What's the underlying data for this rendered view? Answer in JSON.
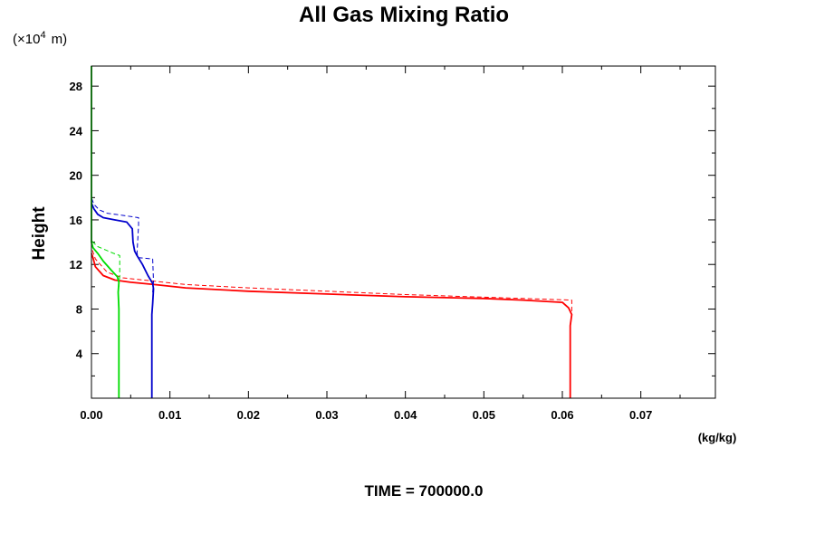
{
  "chart_data": {
    "type": "line",
    "title": "All Gas Mixing Ratio",
    "ylabel": "Height",
    "y_scale_label": "(×10",
    "y_scale_exp": "4",
    "y_scale_unit": "m)",
    "x_unit": "(kg/kg)",
    "footer": "TIME = 700000.0",
    "xlim": [
      0.0,
      0.0795
    ],
    "ylim": [
      0,
      29.8
    ],
    "x_ticks": [
      {
        "value": 0.0,
        "label": "0.00"
      },
      {
        "value": 0.01,
        "label": "0.01"
      },
      {
        "value": 0.02,
        "label": "0.02"
      },
      {
        "value": 0.03,
        "label": "0.03"
      },
      {
        "value": 0.04,
        "label": "0.04"
      },
      {
        "value": 0.05,
        "label": "0.05"
      },
      {
        "value": 0.06,
        "label": "0.06"
      },
      {
        "value": 0.07,
        "label": "0.07"
      }
    ],
    "y_ticks": [
      {
        "value": 4,
        "label": "4"
      },
      {
        "value": 8,
        "label": "8"
      },
      {
        "value": 12,
        "label": "12"
      },
      {
        "value": 16,
        "label": "16"
      },
      {
        "value": 20,
        "label": "20"
      },
      {
        "value": 24,
        "label": "24"
      },
      {
        "value": 28,
        "label": "28"
      }
    ],
    "series": [
      {
        "color": "#ff0000",
        "style": "solid",
        "points": [
          [
            0.061,
            0
          ],
          [
            0.061,
            6.5
          ],
          [
            0.0612,
            7.5
          ],
          [
            0.0608,
            8.1
          ],
          [
            0.06,
            8.6
          ],
          [
            0.055,
            8.8
          ],
          [
            0.05,
            8.95
          ],
          [
            0.04,
            9.1
          ],
          [
            0.03,
            9.35
          ],
          [
            0.02,
            9.6
          ],
          [
            0.012,
            9.9
          ],
          [
            0.008,
            10.2
          ],
          [
            0.005,
            10.4
          ],
          [
            0.003,
            10.6
          ],
          [
            0.0015,
            11.0
          ],
          [
            0.0005,
            11.8
          ],
          [
            0.0002,
            12.6
          ],
          [
            0.0,
            13.0
          ]
        ]
      },
      {
        "color": "#ff0000",
        "style": "dashed",
        "points": [
          [
            0.0612,
            7.8
          ],
          [
            0.0612,
            8.8
          ],
          [
            0.055,
            8.95
          ],
          [
            0.04,
            9.3
          ],
          [
            0.03,
            9.6
          ],
          [
            0.02,
            9.9
          ],
          [
            0.012,
            10.2
          ],
          [
            0.008,
            10.5
          ],
          [
            0.004,
            10.8
          ],
          [
            0.002,
            11.3
          ],
          [
            0.0005,
            12.5
          ],
          [
            0.0,
            13.5
          ]
        ]
      },
      {
        "color": "#0000cc",
        "style": "solid",
        "points": [
          [
            0.0077,
            0
          ],
          [
            0.0077,
            7.5
          ],
          [
            0.0078,
            8.5
          ],
          [
            0.0079,
            9.8
          ],
          [
            0.0078,
            10.3
          ],
          [
            0.0072,
            11.0
          ],
          [
            0.0065,
            12.0
          ],
          [
            0.0058,
            12.8
          ],
          [
            0.0055,
            13.2
          ],
          [
            0.0053,
            14.0
          ],
          [
            0.0052,
            15.2
          ],
          [
            0.0045,
            15.8
          ],
          [
            0.003,
            16.0
          ],
          [
            0.0015,
            16.2
          ],
          [
            0.0008,
            16.5
          ],
          [
            0.0003,
            17.0
          ],
          [
            0.0,
            17.5
          ]
        ]
      },
      {
        "color": "#0000cc",
        "style": "dashed",
        "points": [
          [
            0.0078,
            9.5
          ],
          [
            0.0079,
            10.5
          ],
          [
            0.0078,
            12.5
          ],
          [
            0.006,
            12.6
          ],
          [
            0.0058,
            13.0
          ],
          [
            0.006,
            15.5
          ],
          [
            0.006,
            16.2
          ],
          [
            0.004,
            16.4
          ],
          [
            0.002,
            16.6
          ],
          [
            0.001,
            16.9
          ],
          [
            0.0003,
            17.4
          ],
          [
            0.0,
            18.0
          ]
        ]
      },
      {
        "color": "#00dd00",
        "style": "solid",
        "points": [
          [
            0.0035,
            0
          ],
          [
            0.0035,
            8.0
          ],
          [
            0.0034,
            9.5
          ],
          [
            0.0035,
            10.4
          ],
          [
            0.0033,
            10.9
          ],
          [
            0.0025,
            11.5
          ],
          [
            0.0015,
            12.3
          ],
          [
            0.0008,
            13.0
          ],
          [
            0.0002,
            13.5
          ],
          [
            0.0,
            14.0
          ],
          [
            0.0,
            29.8
          ]
        ]
      },
      {
        "color": "#00dd00",
        "style": "dashed",
        "points": [
          [
            0.0035,
            10.0
          ],
          [
            0.0036,
            11.0
          ],
          [
            0.0036,
            12.8
          ],
          [
            0.0028,
            13.0
          ],
          [
            0.0018,
            13.3
          ],
          [
            0.0008,
            13.6
          ],
          [
            0.0002,
            14.0
          ],
          [
            0.0,
            14.3
          ]
        ]
      }
    ]
  }
}
